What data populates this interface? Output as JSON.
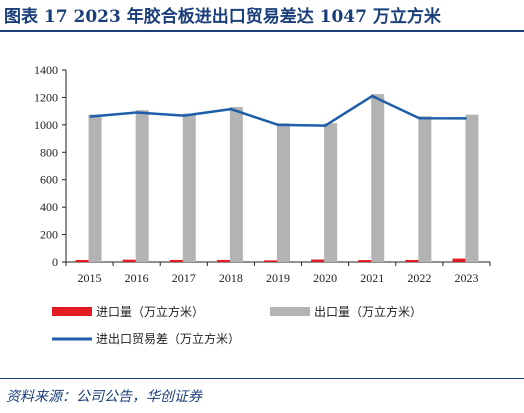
{
  "header": {
    "title": "图表 17   2023 年胶合板进出口贸易差达 1047 万立方米"
  },
  "footer": {
    "source": "资料来源：公司公告，华创证券"
  },
  "colors": {
    "import": "#e31b23",
    "export": "#b3b3b3",
    "balance": "#1f5ea8",
    "brand": "#1a3e7a"
  },
  "chart_data": {
    "type": "bar",
    "categories": [
      "2015",
      "2016",
      "2017",
      "2018",
      "2019",
      "2020",
      "2021",
      "2022",
      "2023"
    ],
    "series": [
      {
        "name": "进口量（万立方米）",
        "kind": "bar",
        "values": [
          15,
          17,
          15,
          15,
          12,
          18,
          14,
          15,
          25
        ]
      },
      {
        "name": "出口量（万立方米）",
        "kind": "bar",
        "values": [
          1075,
          1107,
          1082,
          1130,
          1012,
          1012,
          1224,
          1063,
          1074
        ]
      },
      {
        "name": "进出口贸易差（万立方米）",
        "kind": "line",
        "values": [
          1060,
          1090,
          1067,
          1115,
          1000,
          994,
          1210,
          1048,
          1047
        ]
      }
    ],
    "ylim": [
      0,
      1400
    ],
    "yticks": [
      0,
      200,
      400,
      600,
      800,
      1000,
      1200,
      1400
    ],
    "grid": false,
    "legend": "bottom"
  }
}
